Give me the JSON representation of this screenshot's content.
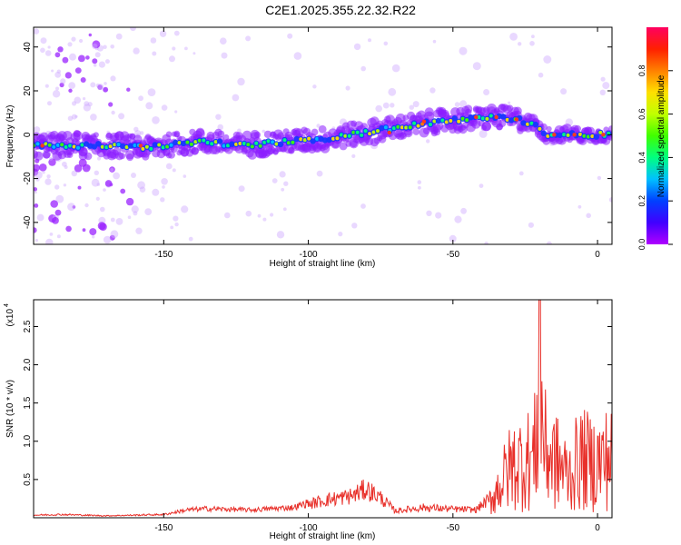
{
  "title": "C2E1.2025.355.22.32.R22",
  "chart_data": [
    {
      "type": "heatmap",
      "name": "spectrogram",
      "xlabel": "Height of straight line (km)",
      "ylabel": "Frequency (Hz)",
      "xlim": [
        -195,
        5
      ],
      "ylim": [
        -50,
        49
      ],
      "xticks": [
        -150,
        -100,
        -50,
        0
      ],
      "yticks": [
        -40,
        -20,
        0,
        20,
        40
      ],
      "colorbar": {
        "label": "Normalized spectral amplitude",
        "range": [
          0,
          1
        ],
        "ticks": [
          "0.0",
          "0.2",
          "0.4",
          "0.6",
          "0.8"
        ],
        "colormap": [
          "#b000ff",
          "#4000ff",
          "#0040ff",
          "#00c0ff",
          "#00ff80",
          "#40ff00",
          "#c0ff00",
          "#ffe000",
          "#ff8000",
          "#ff2000",
          "#ff0060"
        ]
      },
      "ridge": {
        "x": [
          -195,
          -185,
          -175,
          -165,
          -155,
          -145,
          -135,
          -125,
          -115,
          -105,
          -95,
          -85,
          -75,
          -65,
          -55,
          -45,
          -35,
          -28,
          -22,
          -18,
          -10,
          0,
          5
        ],
        "y": [
          -5,
          -5,
          -5,
          -5,
          -6,
          -4,
          -3,
          -5,
          -4,
          -3,
          -2,
          0,
          2,
          4,
          6,
          7,
          8,
          7,
          5,
          0,
          0,
          0,
          0
        ]
      }
    },
    {
      "type": "line",
      "name": "snr",
      "xlabel": "Height of straight line (km)",
      "ylabel": "SNR (10 * v/v)",
      "yscale_label": "(x10",
      "yscale_exp": "4",
      "xlim": [
        -195,
        5
      ],
      "ylim": [
        0,
        2.85
      ],
      "xticks": [
        -150,
        -100,
        -50,
        0
      ],
      "yticks": [
        0.5,
        1.0,
        1.5,
        2.0,
        2.5
      ],
      "ytick_labels": [
        "0.5",
        "1.0",
        "1.5",
        "2.0",
        "2.5"
      ],
      "color": "#e8302a",
      "envelope": {
        "x": [
          -195,
          -185,
          -170,
          -150,
          -142,
          -135,
          -120,
          -105,
          -95,
          -85,
          -80,
          -75,
          -70,
          -60,
          -50,
          -42,
          -38,
          -34,
          -30,
          -26,
          -22,
          -20,
          -18,
          -14,
          -10,
          -6,
          -2,
          2,
          5
        ],
        "y": [
          0.04,
          0.05,
          0.03,
          0.05,
          0.12,
          0.14,
          0.12,
          0.16,
          0.3,
          0.38,
          0.5,
          0.35,
          0.12,
          0.18,
          0.15,
          0.14,
          0.3,
          0.75,
          1.2,
          1.35,
          1.4,
          2.85,
          1.6,
          1.3,
          1.0,
          1.4,
          1.3,
          1.35,
          1.5
        ]
      }
    }
  ]
}
